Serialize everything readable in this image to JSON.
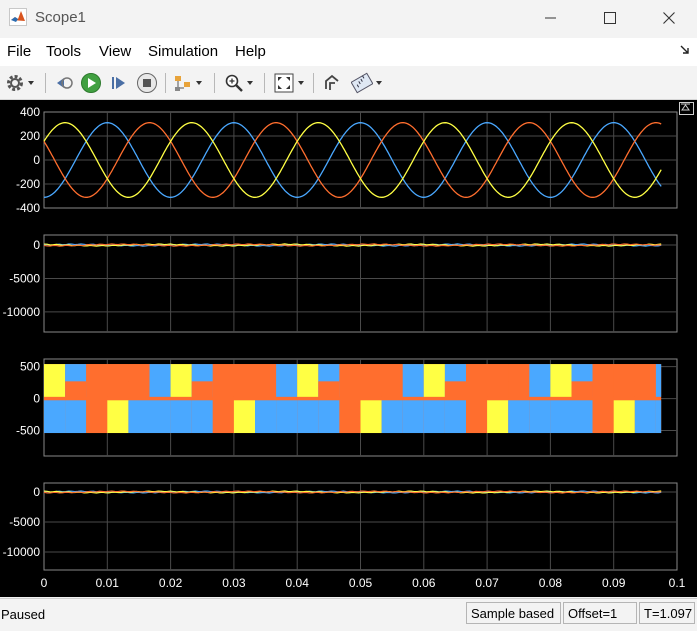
{
  "window": {
    "title": "Scope1"
  },
  "menu": {
    "items": [
      "File",
      "Tools",
      "View",
      "Simulation",
      "Help"
    ]
  },
  "toolbar": {
    "icons": [
      "gear-icon",
      "step-back-icon",
      "run-icon",
      "step-forward-icon",
      "stop-icon",
      "signal-select-icon",
      "zoom-in-icon",
      "fit-axes-icon",
      "highlight-block-icon",
      "measurements-icon"
    ]
  },
  "scope": {
    "colors": {
      "background": "#000000",
      "axes": "#000000",
      "grid": "#4a4a4a",
      "tick_text": "#ffffff",
      "series1": "#4aa8ff",
      "series2": "#ff6e2e",
      "series3": "#ffff44"
    }
  },
  "chart_data": [
    {
      "type": "line",
      "x": [
        0,
        0.0975
      ],
      "xlim": [
        0,
        0.1
      ],
      "ylim": [
        -400,
        400
      ],
      "yticks": [
        "400",
        "200",
        "0",
        "-200",
        "-400"
      ],
      "signal": {
        "form": "three-phase sine",
        "amplitude": 311,
        "frequency_hz": 50
      },
      "series": [
        {
          "color": "#4aa8ff",
          "phase_deg": -90
        },
        {
          "color": "#ff6e2e",
          "phase_deg": 150
        },
        {
          "color": "#ffff44",
          "phase_deg": 30
        }
      ]
    },
    {
      "type": "line",
      "xlim": [
        0,
        0.1
      ],
      "ylim": [
        -13000,
        1500
      ],
      "yticks": [
        "0",
        "-5000",
        "-10000"
      ],
      "signal": {
        "form": "near-zero currents",
        "value": 0
      }
    },
    {
      "type": "area",
      "xlim": [
        0,
        0.1
      ],
      "ylim": [
        -900,
        620
      ],
      "yticks": [
        "500",
        "0",
        "-500"
      ],
      "signal": {
        "form": "three-level PWM line voltages",
        "levels": [
          -540,
          0,
          540
        ]
      },
      "series": [
        {
          "color": "#ffff44"
        },
        {
          "color": "#4aa8ff"
        },
        {
          "color": "#ff6e2e"
        }
      ]
    },
    {
      "type": "line",
      "xlim": [
        0,
        0.1
      ],
      "ylim": [
        -13000,
        1500
      ],
      "yticks": [
        "0",
        "-5000",
        "-10000"
      ],
      "xticks": [
        "0",
        "0.01",
        "0.02",
        "0.03",
        "0.04",
        "0.05",
        "0.06",
        "0.07",
        "0.08",
        "0.09",
        "0.1"
      ],
      "signal": {
        "form": "near-zero currents",
        "value": 0
      }
    }
  ],
  "status": {
    "state": "Paused",
    "mode": "Sample based",
    "offset": "Offset=1",
    "time": "T=1.097"
  }
}
